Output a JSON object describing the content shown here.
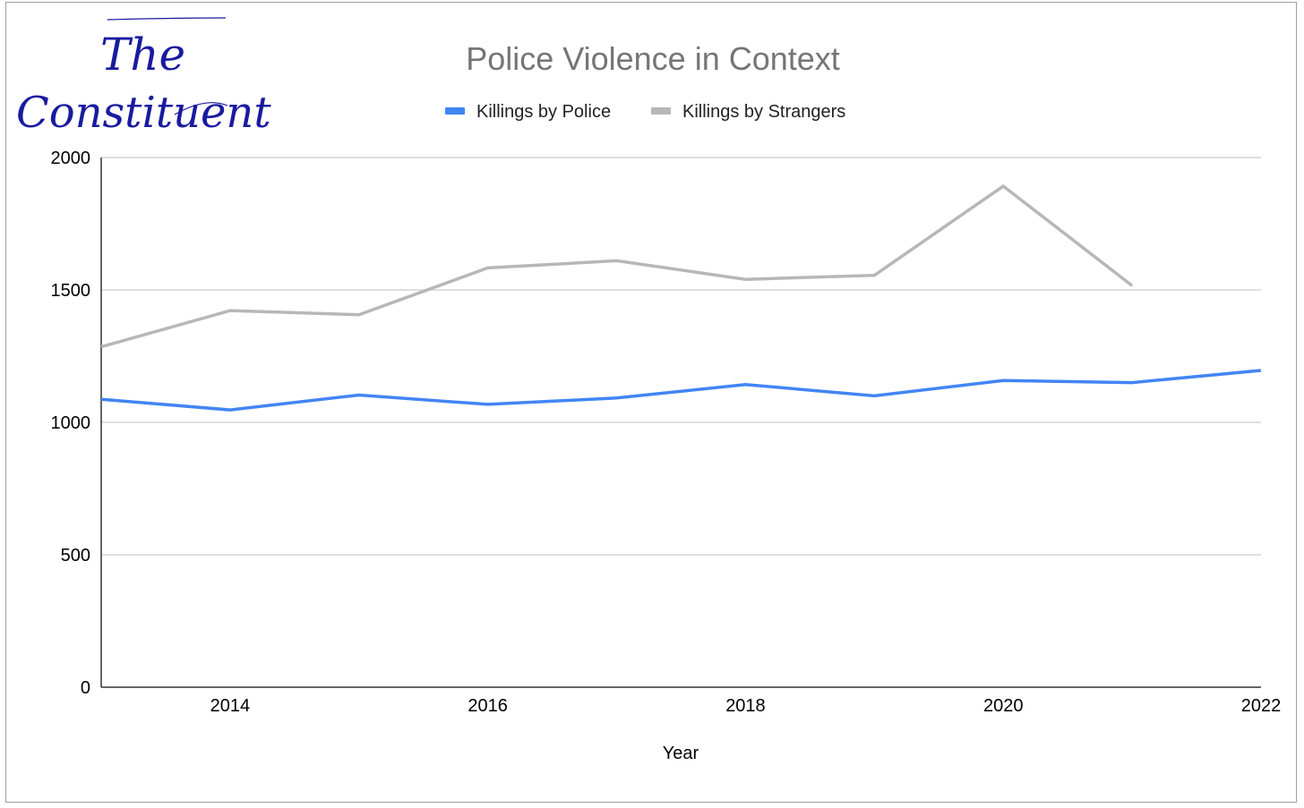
{
  "logo": {
    "line1": "The",
    "line2": "Constituent",
    "color": "#1a1aa0"
  },
  "chart_data": {
    "type": "line",
    "title": "Police Violence in Context",
    "xlabel": "Year",
    "ylabel": "",
    "x": [
      2013,
      2014,
      2015,
      2016,
      2017,
      2018,
      2019,
      2020,
      2021,
      2022
    ],
    "xticks": [
      "2014",
      "2016",
      "2018",
      "2020",
      "2022"
    ],
    "yticks": [
      "0",
      "500",
      "1000",
      "1500",
      "2000"
    ],
    "xlim": [
      2013,
      2022
    ],
    "ylim": [
      0,
      2000
    ],
    "grid": "horizontal",
    "legend": "top",
    "series": [
      {
        "name": "Killings by Police",
        "color": "#4285f4",
        "values": [
          1087,
          1047,
          1103,
          1068,
          1092,
          1143,
          1100,
          1158,
          1150,
          1196
        ]
      },
      {
        "name": "Killings by Strangers",
        "color": "#b7b7b7",
        "values": [
          1285,
          1422,
          1406,
          1583,
          1610,
          1540,
          1555,
          1892,
          1516,
          null
        ]
      }
    ]
  }
}
